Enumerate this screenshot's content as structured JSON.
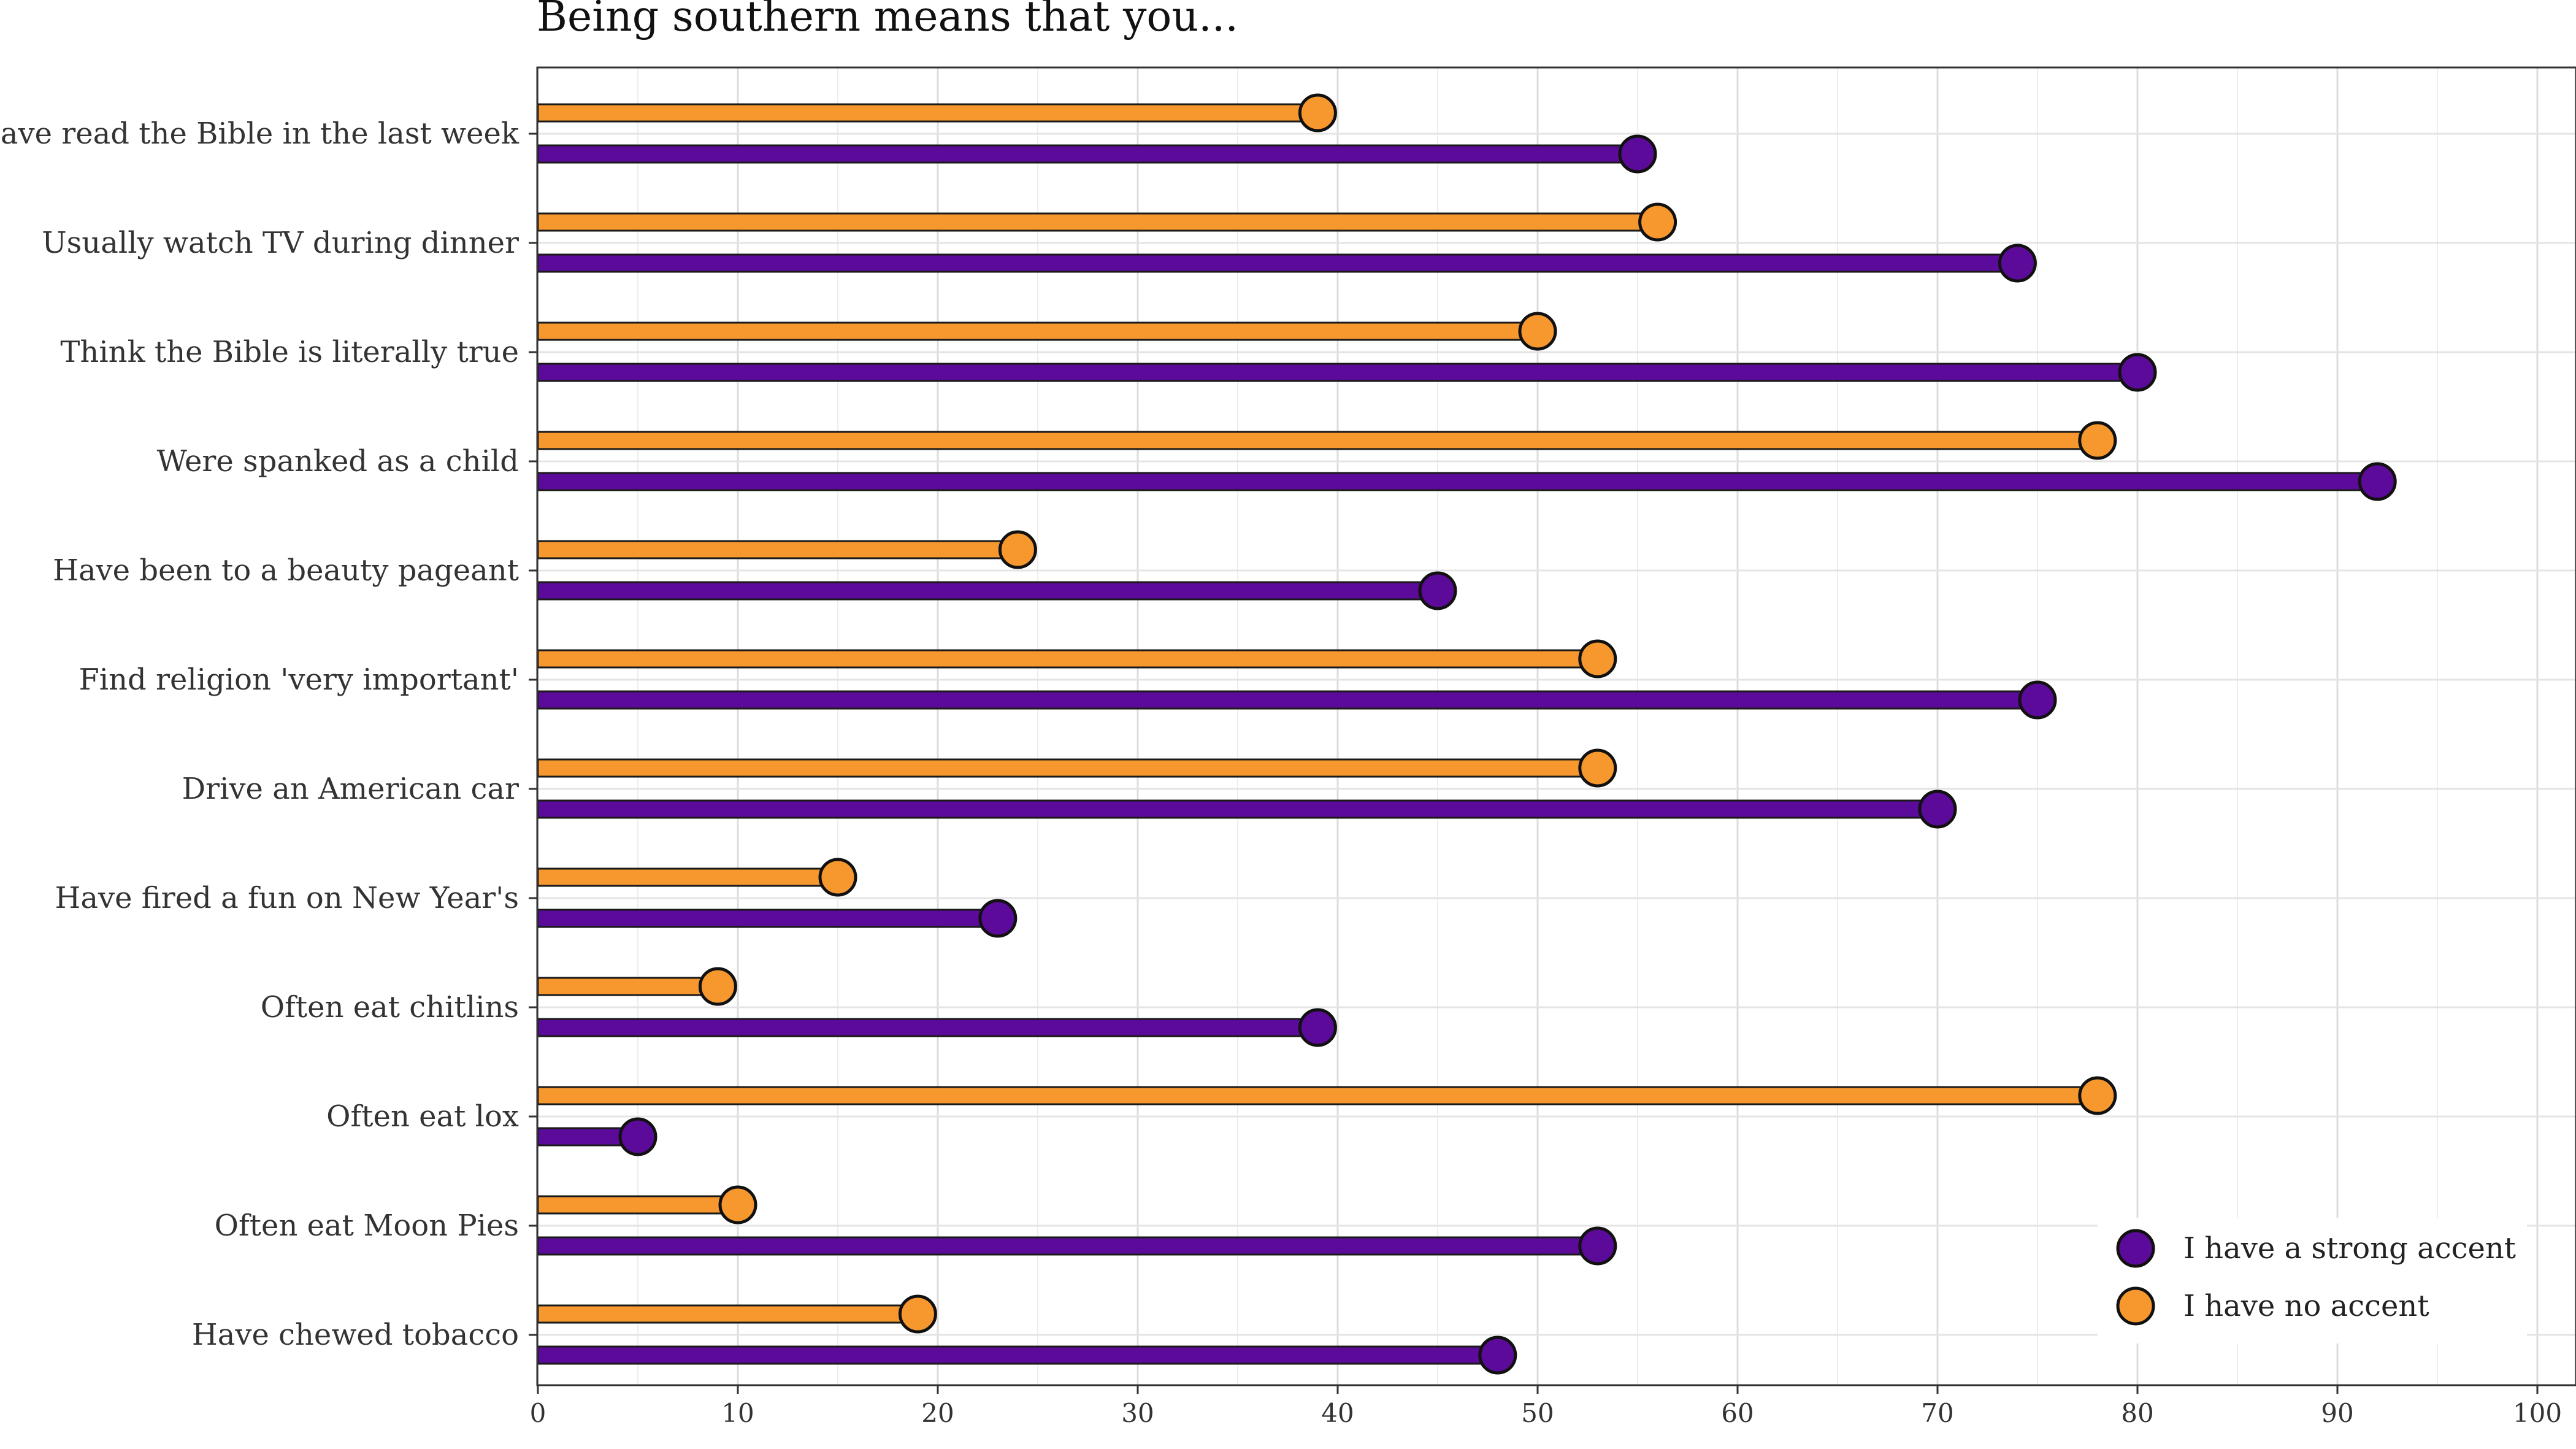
{
  "chart_data": {
    "type": "bar",
    "title": "Being southern means that you...",
    "xlabel": "",
    "ylabel": "",
    "xlim": [
      0,
      100
    ],
    "xticks": [
      0,
      10,
      20,
      30,
      40,
      50,
      60,
      70,
      80,
      90,
      100
    ],
    "grid": true,
    "legend_position": "bottom-right",
    "categories": [
      "Have read the Bible in the last week",
      "Usually watch TV during dinner",
      "Think the Bible is literally true",
      "Were spanked as a child",
      "Have been to a beauty pageant",
      "Find religion 'very important'",
      "Drive an American car",
      "Have fired a fun on New Year's",
      "Often eat chitlins",
      "Often eat lox",
      "Often eat Moon Pies",
      "Have chewed tobacco"
    ],
    "series": [
      {
        "name": "I have a strong accent",
        "color": "#5c0a99",
        "values": [
          55,
          74,
          80,
          92,
          45,
          75,
          70,
          23,
          39,
          5,
          53,
          48
        ]
      },
      {
        "name": "I have no accent",
        "color": "#f7982e",
        "values": [
          39,
          56,
          50,
          78,
          24,
          53,
          53,
          15,
          9,
          78,
          10,
          19
        ]
      }
    ]
  }
}
